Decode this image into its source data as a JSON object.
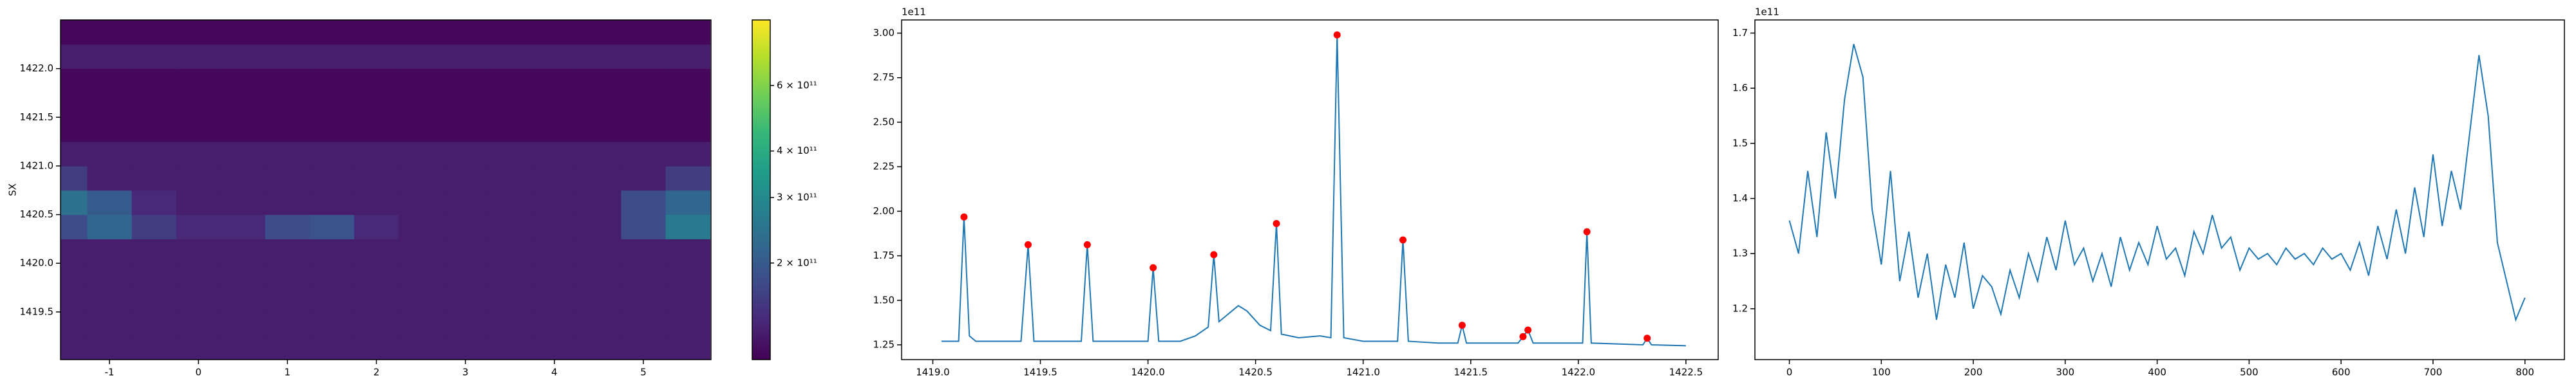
{
  "chart_data": [
    {
      "type": "heatmap",
      "ylabel": "SX",
      "x": [
        -1.5,
        -1.0,
        -0.5,
        0.0,
        0.5,
        1.0,
        1.5,
        2.0,
        2.5,
        3.0,
        3.5,
        4.0,
        4.5,
        5.0,
        5.5
      ],
      "y": [
        1419.125,
        1419.375,
        1419.625,
        1419.875,
        1420.125,
        1420.375,
        1420.625,
        1420.875,
        1421.125,
        1421.375,
        1421.625,
        1421.875,
        1422.125,
        1422.375
      ],
      "z": [
        [
          130000000000.0,
          130000000000.0,
          130000000000.0,
          130000000000.0,
          130000000000.0,
          130000000000.0,
          130000000000.0,
          130000000000.0,
          130000000000.0,
          130000000000.0,
          130000000000.0,
          130000000000.0,
          130000000000.0,
          130000000000.0,
          130000000000.0
        ],
        [
          130000000000.0,
          130000000000.0,
          130000000000.0,
          130000000000.0,
          130000000000.0,
          130000000000.0,
          130000000000.0,
          130000000000.0,
          130000000000.0,
          130000000000.0,
          130000000000.0,
          130000000000.0,
          130000000000.0,
          130000000000.0,
          130000000000.0
        ],
        [
          130000000000.0,
          130000000000.0,
          130000000000.0,
          130000000000.0,
          130000000000.0,
          130000000000.0,
          130000000000.0,
          130000000000.0,
          130000000000.0,
          130000000000.0,
          130000000000.0,
          130000000000.0,
          130000000000.0,
          130000000000.0,
          130000000000.0
        ],
        [
          130000000000.0,
          130000000000.0,
          130000000000.0,
          130000000000.0,
          130000000000.0,
          130000000000.0,
          130000000000.0,
          130000000000.0,
          130000000000.0,
          130000000000.0,
          130000000000.0,
          130000000000.0,
          130000000000.0,
          130000000000.0,
          130000000000.0
        ],
        [
          130000000000.0,
          130000000000.0,
          130000000000.0,
          130000000000.0,
          130000000000.0,
          130000000000.0,
          130000000000.0,
          130000000000.0,
          130000000000.0,
          130000000000.0,
          130000000000.0,
          130000000000.0,
          130000000000.0,
          130000000000.0,
          130000000000.0
        ],
        [
          180000000000.0,
          220000000000.0,
          160000000000.0,
          140000000000.0,
          140000000000.0,
          180000000000.0,
          190000000000.0,
          140000000000.0,
          130000000000.0,
          130000000000.0,
          130000000000.0,
          130000000000.0,
          130000000000.0,
          180000000000.0,
          260000000000.0
        ],
        [
          240000000000.0,
          200000000000.0,
          140000000000.0,
          130000000000.0,
          130000000000.0,
          130000000000.0,
          130000000000.0,
          130000000000.0,
          130000000000.0,
          130000000000.0,
          130000000000.0,
          130000000000.0,
          130000000000.0,
          180000000000.0,
          220000000000.0
        ],
        [
          160000000000.0,
          130000000000.0,
          130000000000.0,
          130000000000.0,
          130000000000.0,
          130000000000.0,
          130000000000.0,
          130000000000.0,
          130000000000.0,
          130000000000.0,
          130000000000.0,
          130000000000.0,
          130000000000.0,
          130000000000.0,
          160000000000.0
        ],
        [
          130000000000.0,
          130000000000.0,
          130000000000.0,
          130000000000.0,
          130000000000.0,
          130000000000.0,
          130000000000.0,
          130000000000.0,
          130000000000.0,
          130000000000.0,
          130000000000.0,
          130000000000.0,
          130000000000.0,
          130000000000.0,
          130000000000.0
        ],
        [
          115000000000.0,
          115000000000.0,
          115000000000.0,
          115000000000.0,
          115000000000.0,
          115000000000.0,
          115000000000.0,
          115000000000.0,
          115000000000.0,
          115000000000.0,
          115000000000.0,
          115000000000.0,
          115000000000.0,
          115000000000.0,
          115000000000.0
        ],
        [
          115000000000.0,
          115000000000.0,
          115000000000.0,
          115000000000.0,
          115000000000.0,
          115000000000.0,
          115000000000.0,
          115000000000.0,
          115000000000.0,
          115000000000.0,
          115000000000.0,
          115000000000.0,
          115000000000.0,
          115000000000.0,
          115000000000.0
        ],
        [
          115000000000.0,
          115000000000.0,
          115000000000.0,
          115000000000.0,
          115000000000.0,
          115000000000.0,
          115000000000.0,
          115000000000.0,
          115000000000.0,
          115000000000.0,
          115000000000.0,
          115000000000.0,
          115000000000.0,
          115000000000.0,
          115000000000.0
        ],
        [
          130000000000.0,
          130000000000.0,
          130000000000.0,
          130000000000.0,
          130000000000.0,
          130000000000.0,
          130000000000.0,
          130000000000.0,
          130000000000.0,
          130000000000.0,
          130000000000.0,
          130000000000.0,
          130000000000.0,
          130000000000.0,
          130000000000.0
        ],
        [
          115000000000.0,
          115000000000.0,
          115000000000.0,
          115000000000.0,
          115000000000.0,
          115000000000.0,
          115000000000.0,
          115000000000.0,
          115000000000.0,
          115000000000.0,
          115000000000.0,
          115000000000.0,
          115000000000.0,
          115000000000.0,
          115000000000.0
        ]
      ],
      "colormap": "viridis",
      "color_log_scale": true,
      "clim": [
        110000000000.0,
        900000000000.0
      ],
      "cticks": [
        {
          "value": 200000000000.0,
          "label": "2 × 10¹¹"
        },
        {
          "value": 300000000000.0,
          "label": "3 × 10¹¹"
        },
        {
          "value": 400000000000.0,
          "label": "4 × 10¹¹"
        },
        {
          "value": 600000000000.0,
          "label": "6 × 10¹¹"
        }
      ],
      "xlim": [
        -1.55,
        5.76
      ],
      "xticks": [
        -1,
        0,
        1,
        2,
        3,
        4,
        5
      ],
      "ylim": [
        1419.01,
        1422.5
      ],
      "yticks": [
        1419.5,
        {
          "value": 1420,
          "label": "1420.0"
        },
        1420.5,
        {
          "value": 1421,
          "label": "1421.0"
        },
        1421.5,
        {
          "value": 1422,
          "label": "1422.0"
        }
      ]
    },
    {
      "type": "line",
      "offset_text": "1e11",
      "series": [
        {
          "color": "#1f77b4",
          "style": "line",
          "x": [
            1419.04,
            1419.12,
            1419.145,
            1419.17,
            1419.2,
            1419.3,
            1419.41,
            1419.443,
            1419.47,
            1419.6,
            1419.69,
            1419.718,
            1419.745,
            1419.9,
            1420.0,
            1420.024,
            1420.05,
            1420.15,
            1420.22,
            1420.28,
            1420.306,
            1420.33,
            1420.38,
            1420.42,
            1420.46,
            1420.52,
            1420.57,
            1420.597,
            1420.62,
            1420.7,
            1420.8,
            1420.85,
            1420.879,
            1420.91,
            1421.0,
            1421.16,
            1421.185,
            1421.21,
            1421.35,
            1421.44,
            1421.46,
            1421.48,
            1421.72,
            1421.743,
            1421.766,
            1421.79,
            1422.0,
            1422.02,
            1422.04,
            1422.06,
            1422.3,
            1422.32,
            1422.34,
            1422.5
          ],
          "values": [
            1.27,
            1.27,
            1.968,
            1.3,
            1.27,
            1.27,
            1.27,
            1.812,
            1.27,
            1.27,
            1.27,
            1.812,
            1.27,
            1.27,
            1.27,
            1.683,
            1.27,
            1.27,
            1.3,
            1.35,
            1.756,
            1.38,
            1.43,
            1.47,
            1.44,
            1.36,
            1.33,
            1.931,
            1.31,
            1.29,
            1.3,
            1.29,
            2.99,
            1.29,
            1.27,
            1.27,
            1.839,
            1.27,
            1.26,
            1.26,
            1.36,
            1.26,
            1.26,
            1.296,
            1.333,
            1.26,
            1.26,
            1.26,
            1.885,
            1.26,
            1.25,
            1.287,
            1.25,
            1.245
          ]
        },
        {
          "color": "red",
          "style": "markers",
          "x": [
            1419.145,
            1419.443,
            1419.718,
            1420.024,
            1420.306,
            1420.597,
            1420.879,
            1421.185,
            1421.46,
            1421.743,
            1421.766,
            1422.04,
            1422.32
          ],
          "values": [
            1.968,
            1.812,
            1.812,
            1.683,
            1.756,
            1.931,
            2.99,
            1.839,
            1.36,
            1.296,
            1.333,
            1.885,
            1.287
          ]
        }
      ],
      "xlim": [
        1418.855,
        1422.65
      ],
      "xticks": [
        {
          "value": 1419,
          "label": "1419.0"
        },
        1419.5,
        {
          "value": 1420,
          "label": "1420.0"
        },
        1420.5,
        {
          "value": 1421,
          "label": "1421.0"
        },
        1421.5,
        {
          "value": 1422,
          "label": "1422.0"
        },
        1422.5
      ],
      "ylim": [
        1.167,
        3.074
      ],
      "yticks": [
        1.25,
        {
          "value": 1.5,
          "label": "1.50"
        },
        1.75,
        {
          "value": 2,
          "label": "2.00"
        },
        2.25,
        {
          "value": 2.5,
          "label": "2.50"
        },
        2.75,
        {
          "value": 3,
          "label": "3.00"
        }
      ]
    },
    {
      "type": "line",
      "offset_text": "1e11",
      "series": [
        {
          "color": "#1f77b4",
          "style": "line",
          "x": [
            0,
            10,
            20,
            30,
            40,
            50,
            60,
            70,
            80,
            90,
            100,
            110,
            120,
            130,
            140,
            150,
            160,
            170,
            180,
            190,
            200,
            210,
            220,
            230,
            240,
            250,
            260,
            270,
            280,
            290,
            300,
            310,
            320,
            330,
            340,
            350,
            360,
            370,
            380,
            390,
            400,
            410,
            420,
            430,
            440,
            450,
            460,
            470,
            480,
            490,
            500,
            510,
            520,
            530,
            540,
            550,
            560,
            570,
            580,
            590,
            600,
            610,
            620,
            630,
            640,
            650,
            660,
            670,
            680,
            690,
            700,
            710,
            720,
            730,
            740,
            750,
            760,
            770,
            780,
            790,
            800
          ],
          "values": [
            1.36,
            1.3,
            1.45,
            1.33,
            1.52,
            1.4,
            1.58,
            1.68,
            1.62,
            1.38,
            1.28,
            1.45,
            1.25,
            1.34,
            1.22,
            1.3,
            1.18,
            1.28,
            1.22,
            1.32,
            1.2,
            1.26,
            1.24,
            1.19,
            1.27,
            1.22,
            1.3,
            1.25,
            1.33,
            1.27,
            1.36,
            1.28,
            1.31,
            1.25,
            1.3,
            1.24,
            1.33,
            1.27,
            1.32,
            1.28,
            1.35,
            1.29,
            1.31,
            1.26,
            1.34,
            1.3,
            1.37,
            1.31,
            1.33,
            1.27,
            1.31,
            1.29,
            1.3,
            1.28,
            1.31,
            1.29,
            1.3,
            1.28,
            1.31,
            1.29,
            1.3,
            1.27,
            1.32,
            1.26,
            1.35,
            1.29,
            1.38,
            1.3,
            1.42,
            1.33,
            1.48,
            1.35,
            1.45,
            1.38,
            1.52,
            1.66,
            1.55,
            1.32,
            1.25,
            1.18,
            1.22
          ]
        }
      ],
      "xlim": [
        -37.5,
        842.9
      ],
      "xticks": [
        0,
        100,
        200,
        300,
        400,
        500,
        600,
        700,
        800
      ],
      "ylim": [
        1.1077,
        1.7238
      ],
      "yticks": [
        1.2,
        1.3,
        1.4,
        1.5,
        1.6,
        1.7
      ]
    }
  ]
}
